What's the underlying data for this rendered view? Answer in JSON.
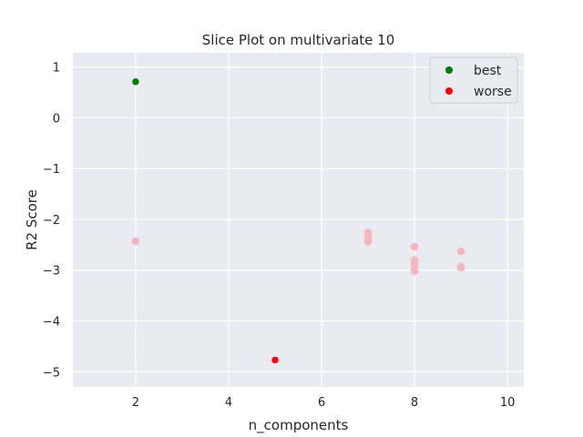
{
  "chart_data": {
    "type": "scatter",
    "title": "Slice Plot on multivariate 10",
    "xlabel": "n_components",
    "ylabel": "R2 Score",
    "xlim": [
      0.65,
      10.35
    ],
    "ylim": [
      -5.3,
      1.28
    ],
    "xticks": [
      2,
      4,
      6,
      8,
      10
    ],
    "yticks": [
      1,
      0,
      -1,
      -2,
      -3,
      -4,
      -5
    ],
    "ytick_labels": [
      "1",
      "0",
      "−1",
      "−2",
      "−3",
      "−4",
      "−5"
    ],
    "grid": true,
    "legend_position": "top-right",
    "reference_line_x": 2,
    "series": [
      {
        "name": "best",
        "color": "#008000",
        "points": [
          {
            "x": 2,
            "y": 0.71
          }
        ]
      },
      {
        "name": "worse",
        "color": "#ff0000",
        "points": [
          {
            "x": 5,
            "y": -4.77
          }
        ]
      },
      {
        "color": "#f4b6bd",
        "points": [
          {
            "x": 2,
            "y": -2.43
          },
          {
            "x": 7,
            "y": -2.26
          },
          {
            "x": 7,
            "y": -2.33
          },
          {
            "x": 7,
            "y": -2.38
          },
          {
            "x": 7,
            "y": -2.44
          },
          {
            "x": 8,
            "y": -2.54
          },
          {
            "x": 8,
            "y": -2.8
          },
          {
            "x": 8,
            "y": -2.84
          },
          {
            "x": 8,
            "y": -2.9
          },
          {
            "x": 8,
            "y": -2.98
          },
          {
            "x": 8,
            "y": -3.02
          },
          {
            "x": 9,
            "y": -2.63
          },
          {
            "x": 9,
            "y": -2.93
          },
          {
            "x": 9,
            "y": -2.95
          }
        ]
      }
    ]
  }
}
